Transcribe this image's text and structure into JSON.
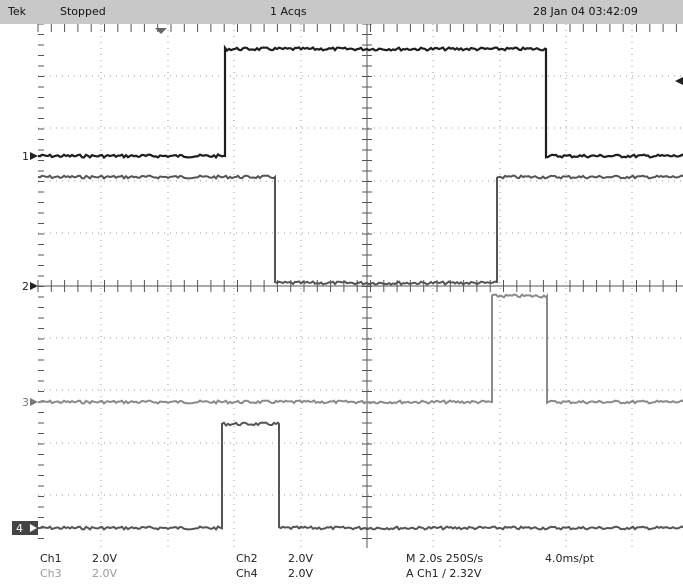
{
  "status_bar": {
    "brand": "Tek",
    "state": "Stopped",
    "acqs": "1 Acqs",
    "datetime": "28 Jan 04 03:42:09"
  },
  "channel_markers": [
    "1",
    "2",
    "3",
    "4"
  ],
  "readout": {
    "ch1_label": "Ch1",
    "ch1_scale": "2.0V",
    "ch2_label": "Ch2",
    "ch2_scale": "2.0V",
    "ch3_label": "Ch3",
    "ch3_scale": "2.0V",
    "ch4_label": "Ch4",
    "ch4_scale": "2.0V",
    "timebase": "M 2.0s 250S/s",
    "points": "4.0ms/pt",
    "trigger": "A Ch1  ∕  2.32V"
  },
  "colors": {
    "header_bg": "#c8c8c8",
    "trace_dark": "#1e1e1e",
    "trace_mid": "#555555",
    "trace_light": "#8a8a8a",
    "graticule": "#999999"
  }
}
